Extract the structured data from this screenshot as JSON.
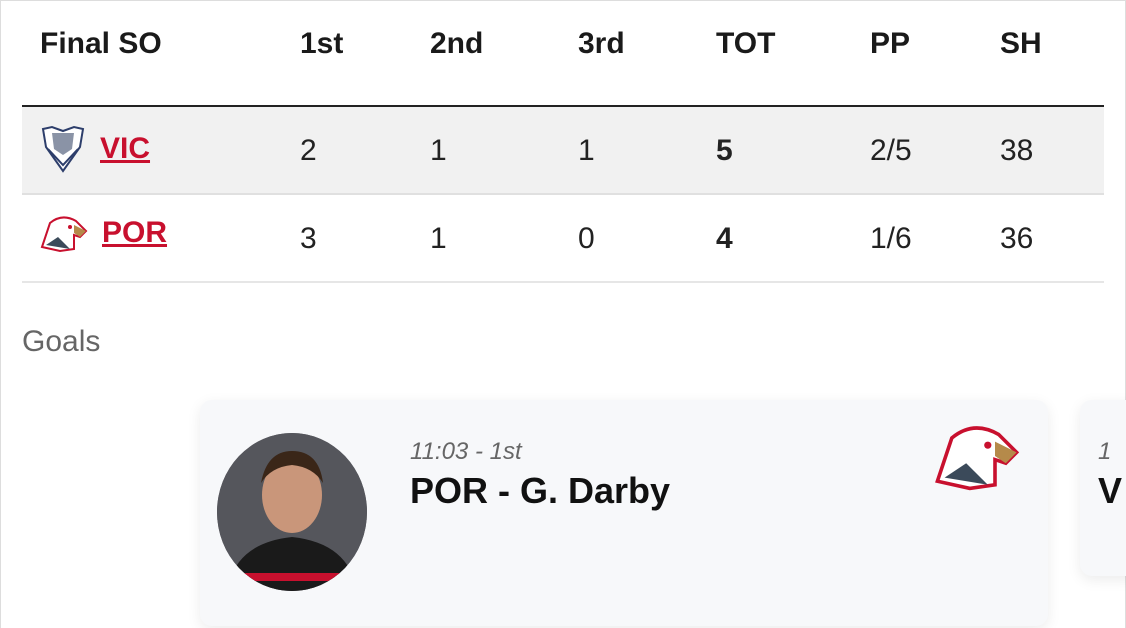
{
  "table": {
    "headers": [
      "Final SO",
      "1st",
      "2nd",
      "3rd",
      "TOT",
      "PP",
      "SH"
    ],
    "rows": [
      {
        "team": "VIC",
        "logo": "vic-royals-logo",
        "p1": "2",
        "p2": "1",
        "p3": "1",
        "tot": "5",
        "pp": "2/5",
        "sh": "38"
      },
      {
        "team": "POR",
        "logo": "portland-winterhawks-logo",
        "p1": "3",
        "p2": "1",
        "p3": "0",
        "tot": "4",
        "pp": "1/6",
        "sh": "36"
      }
    ]
  },
  "goals": {
    "title": "Goals",
    "cards": [
      {
        "time": "11:03 - 1st",
        "scorer": "POR - G. Darby",
        "team_logo": "portland-winterhawks-logo"
      },
      {
        "time": "1",
        "scorer": "V"
      }
    ]
  },
  "colors": {
    "team_link": "#c8102e",
    "row_alt": "#f1f1f1"
  }
}
